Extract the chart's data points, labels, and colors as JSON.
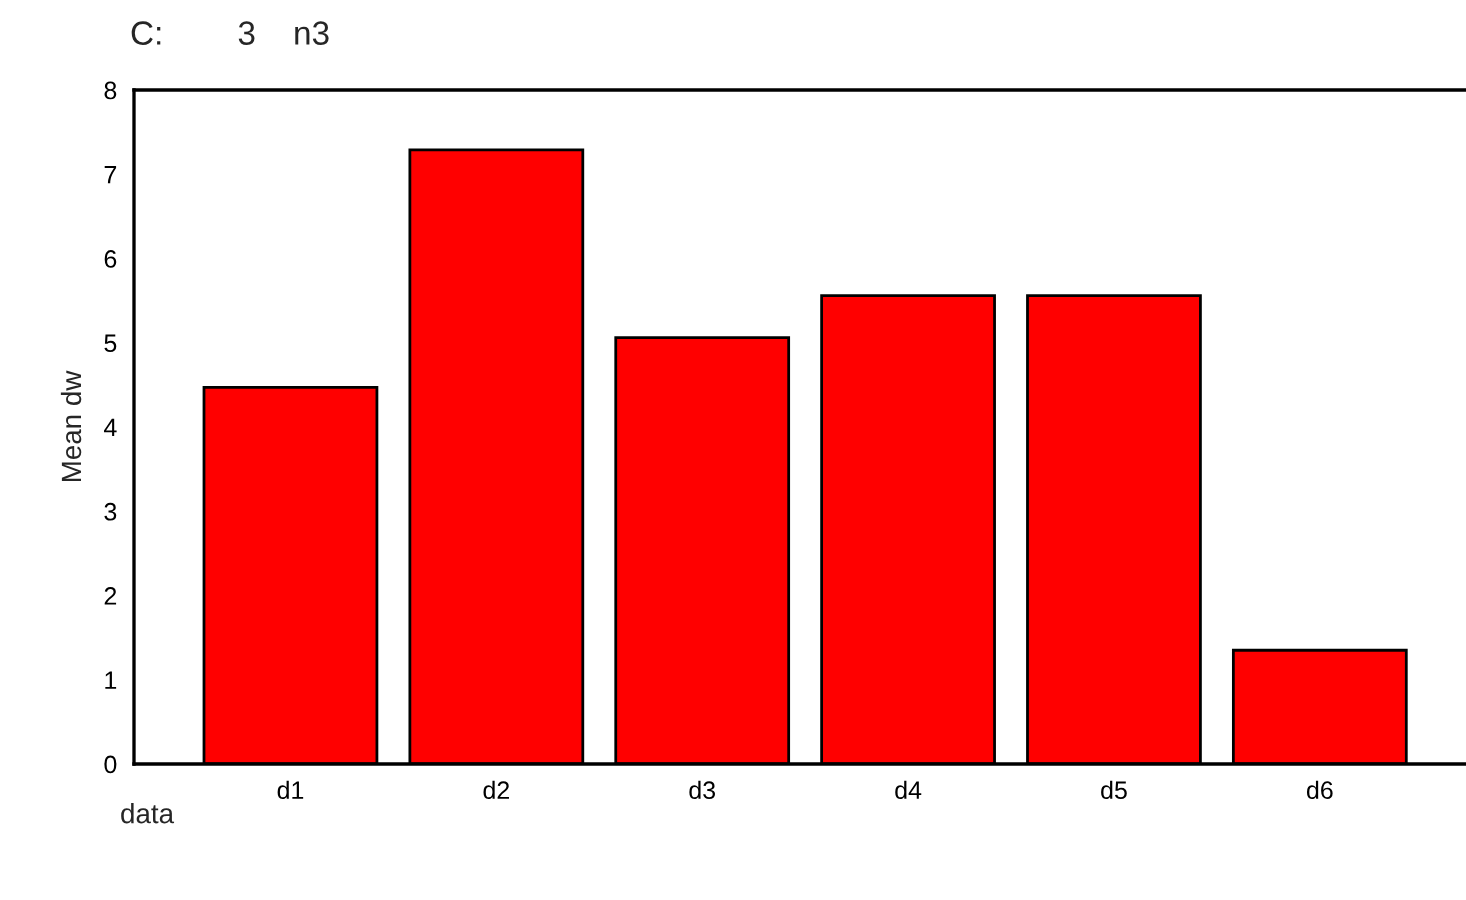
{
  "chart_data": {
    "type": "bar",
    "title": "C:        3    n3",
    "xlabel": "data",
    "ylabel": "Mean dw",
    "categories": [
      "d1",
      "d2",
      "d3",
      "d4",
      "d5",
      "d6"
    ],
    "values": [
      4.47,
      7.29,
      5.06,
      5.56,
      5.56,
      1.35
    ],
    "color": "#ff0000",
    "ylim": [
      0,
      8
    ],
    "yticks": [
      0,
      1,
      2,
      3,
      4,
      5,
      6,
      7,
      8
    ],
    "grid": false,
    "legend": false
  }
}
